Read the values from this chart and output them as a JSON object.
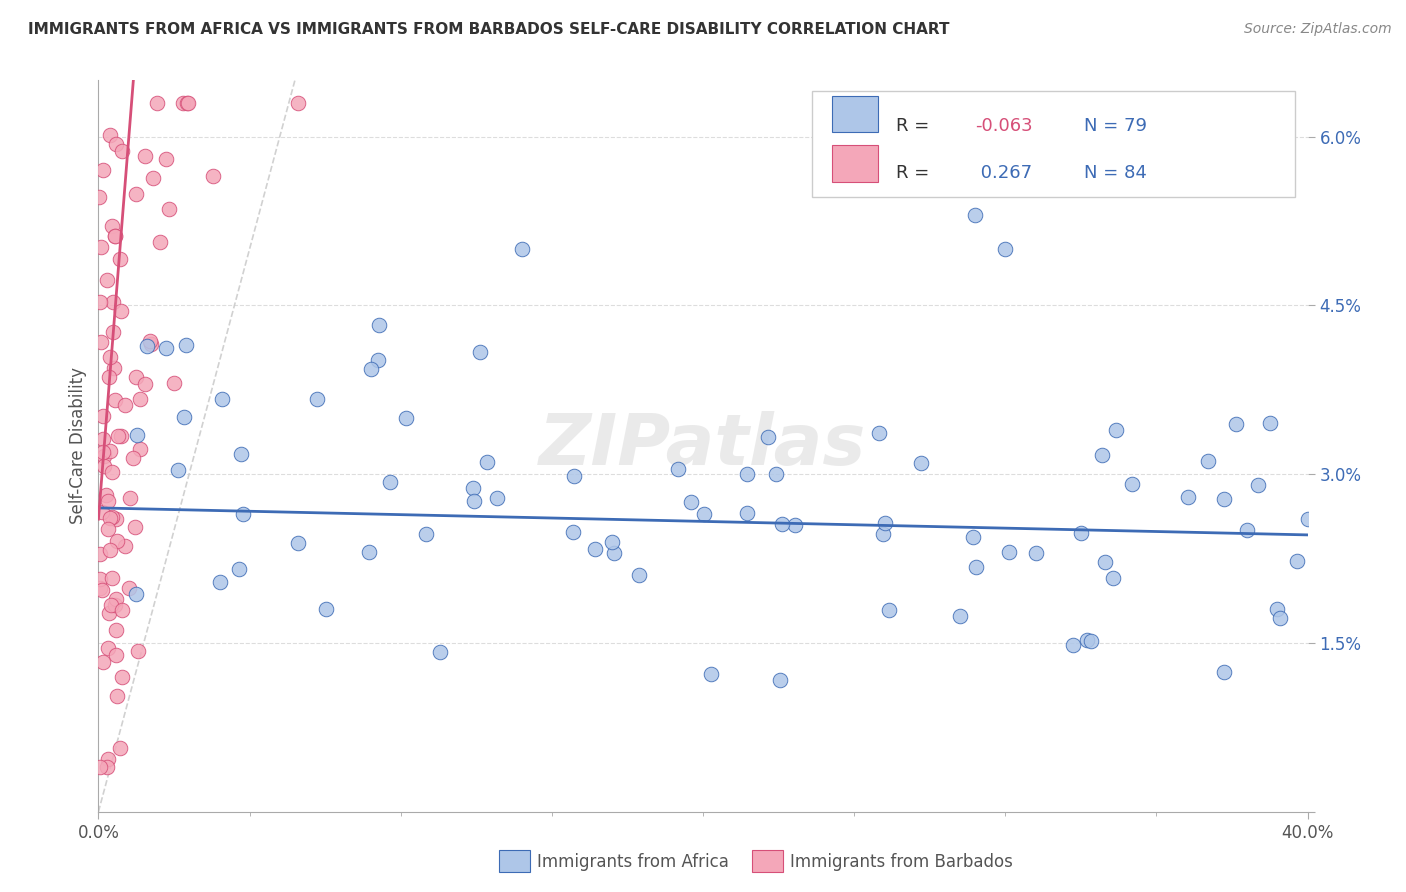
{
  "title": "IMMIGRANTS FROM AFRICA VS IMMIGRANTS FROM BARBADOS SELF-CARE DISABILITY CORRELATION CHART",
  "source": "Source: ZipAtlas.com",
  "ylabel_label": "Self-Care Disability",
  "xmin": 0.0,
  "xmax": 0.4,
  "ymin": 0.0,
  "ymax": 0.065,
  "ytick_vals": [
    0.0,
    0.015,
    0.03,
    0.045,
    0.06
  ],
  "ytick_labels": [
    "",
    "1.5%",
    "3.0%",
    "4.5%",
    "6.0%"
  ],
  "xtick_vals": [
    0.0,
    0.4
  ],
  "xtick_labels": [
    "0.0%",
    "40.0%"
  ],
  "r_africa": -0.063,
  "n_africa": 79,
  "r_barbados": 0.267,
  "n_barbados": 84,
  "color_africa": "#aec6e8",
  "color_barbados": "#f4a7b9",
  "trendline_africa_color": "#3d6bb5",
  "trendline_barbados_color": "#d64f78",
  "diagonal_color": "#cccccc",
  "background_color": "#ffffff",
  "grid_color": "#dddddd",
  "title_color": "#333333",
  "tick_color": "#555555",
  "watermark_text": "ZIPatlas",
  "legend_label_africa": "Immigrants from Africa",
  "legend_label_barbados": "Immigrants from Barbados"
}
